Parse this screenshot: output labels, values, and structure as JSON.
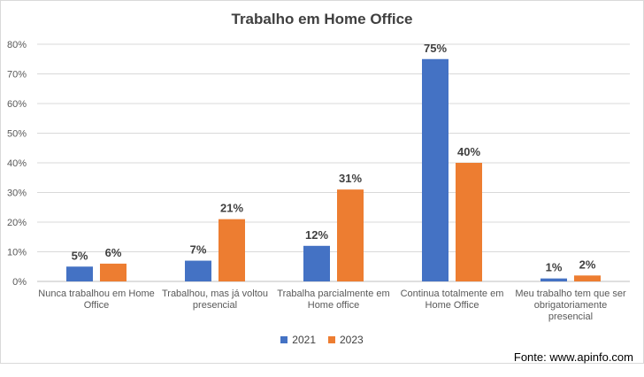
{
  "chart_data": {
    "type": "bar",
    "title": "Trabalho em Home Office",
    "categories": [
      [
        "Nunca trabalhou em Home",
        "Office"
      ],
      [
        "Trabalhou, mas já voltou",
        "presencial"
      ],
      [
        "Trabalha parcialmente em",
        "Home office"
      ],
      [
        "Continua totalmente em",
        "Home Office"
      ],
      [
        "Meu trabalho tem que ser",
        "obrigatoriamente",
        "presencial"
      ]
    ],
    "series": [
      {
        "name": "2021",
        "color": "#4472c4",
        "values": [
          5,
          7,
          12,
          75,
          1
        ]
      },
      {
        "name": "2023",
        "color": "#ed7d31",
        "values": [
          6,
          21,
          31,
          40,
          2
        ]
      }
    ],
    "ylim": [
      0,
      80
    ],
    "yticks": [
      "0%",
      "10%",
      "20%",
      "30%",
      "40%",
      "50%",
      "60%",
      "70%",
      "80%"
    ],
    "value_suffix": "%",
    "grid": true,
    "legend_position": "bottom"
  },
  "source_text": "Fonte: www.apinfo.com"
}
